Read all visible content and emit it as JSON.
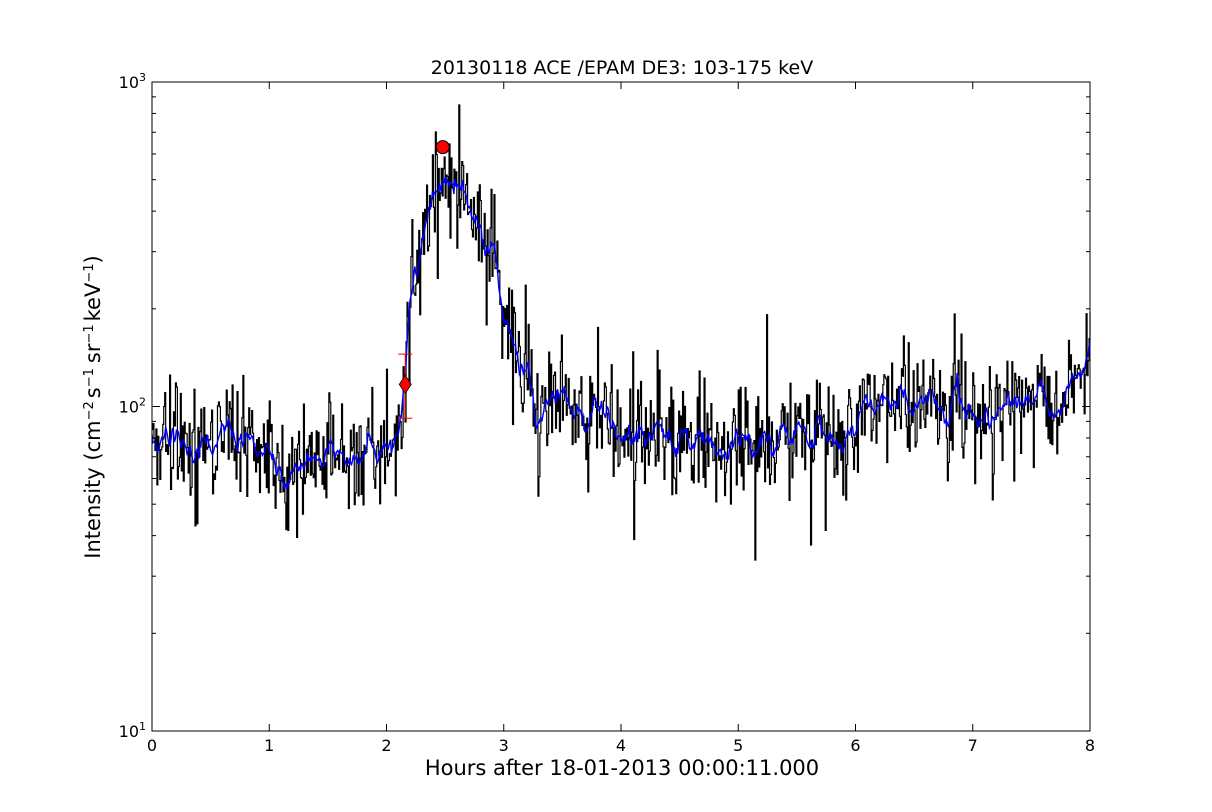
{
  "chart_data": {
    "type": "line",
    "title": "20130118 ACE /EPAM DE3: 103-175 keV",
    "xlabel": "Hours after 18-01-2013 00:00:11.000",
    "ylabel": "Intensity (cm",
    "ylabel_sup1": "−2",
    "ylabel_mid1": "s",
    "ylabel_sup2": "−1",
    "ylabel_mid2": "sr",
    "ylabel_sup3": "−1",
    "ylabel_mid3": "keV",
    "ylabel_sup4": "−1",
    "ylabel_end": ")",
    "xlim": [
      0,
      8
    ],
    "ylim": [
      10,
      1000
    ],
    "yscale": "log",
    "grid": false,
    "x_ticks": [
      "0",
      "1",
      "2",
      "3",
      "4",
      "5",
      "6",
      "7",
      "8"
    ],
    "y_ticks": [
      {
        "base": "10",
        "exp": "1"
      },
      {
        "base": "10",
        "exp": "2"
      },
      {
        "base": "10",
        "exp": "3"
      }
    ],
    "colors": {
      "raw": "#000000",
      "smoothed": "#0000ff",
      "marker": "#ff0000"
    },
    "envelope": [
      [
        0.0,
        82
      ],
      [
        0.1,
        80
      ],
      [
        0.2,
        78
      ],
      [
        0.3,
        75
      ],
      [
        0.4,
        73
      ],
      [
        0.5,
        76
      ],
      [
        0.6,
        80
      ],
      [
        0.7,
        82
      ],
      [
        0.8,
        77
      ],
      [
        0.9,
        74
      ],
      [
        1.0,
        72
      ],
      [
        1.1,
        68
      ],
      [
        1.15,
        58
      ],
      [
        1.2,
        62
      ],
      [
        1.3,
        68
      ],
      [
        1.4,
        66
      ],
      [
        1.5,
        70
      ],
      [
        1.6,
        72
      ],
      [
        1.7,
        74
      ],
      [
        1.8,
        73
      ],
      [
        1.9,
        72
      ],
      [
        2.0,
        74
      ],
      [
        2.1,
        82
      ],
      [
        2.15,
        92
      ],
      [
        2.18,
        150
      ],
      [
        2.22,
        240
      ],
      [
        2.26,
        300
      ],
      [
        2.3,
        380
      ],
      [
        2.35,
        420
      ],
      [
        2.4,
        440
      ],
      [
        2.45,
        490
      ],
      [
        2.5,
        520
      ],
      [
        2.55,
        505
      ],
      [
        2.6,
        480
      ],
      [
        2.65,
        490
      ],
      [
        2.7,
        460
      ],
      [
        2.75,
        410
      ],
      [
        2.8,
        350
      ],
      [
        2.85,
        330
      ],
      [
        2.9,
        300
      ],
      [
        2.95,
        260
      ],
      [
        3.0,
        200
      ],
      [
        3.05,
        165
      ],
      [
        3.1,
        145
      ],
      [
        3.15,
        130
      ],
      [
        3.2,
        120
      ],
      [
        3.3,
        112
      ],
      [
        3.4,
        106
      ],
      [
        3.5,
        102
      ],
      [
        3.6,
        98
      ],
      [
        3.7,
        94
      ],
      [
        3.8,
        92
      ],
      [
        3.9,
        90
      ],
      [
        4.0,
        86
      ],
      [
        4.2,
        84
      ],
      [
        4.4,
        82
      ],
      [
        4.6,
        80
      ],
      [
        4.8,
        79
      ],
      [
        5.0,
        76
      ],
      [
        5.2,
        77
      ],
      [
        5.4,
        78
      ],
      [
        5.6,
        79
      ],
      [
        5.8,
        78
      ],
      [
        5.9,
        82
      ],
      [
        6.0,
        92
      ],
      [
        6.2,
        100
      ],
      [
        6.4,
        106
      ],
      [
        6.6,
        104
      ],
      [
        6.8,
        102
      ],
      [
        7.0,
        98
      ],
      [
        7.2,
        100
      ],
      [
        7.4,
        104
      ],
      [
        7.6,
        102
      ],
      [
        7.8,
        106
      ],
      [
        7.9,
        116
      ],
      [
        8.0,
        148
      ]
    ],
    "onset_marker": {
      "shape": "diamond",
      "x": 2.16,
      "y": 117
    },
    "peak_marker": {
      "shape": "circle",
      "x": 2.48,
      "y": 630
    },
    "error_bar": {
      "x": 2.16,
      "y_low": 92,
      "y_high": 145
    }
  }
}
